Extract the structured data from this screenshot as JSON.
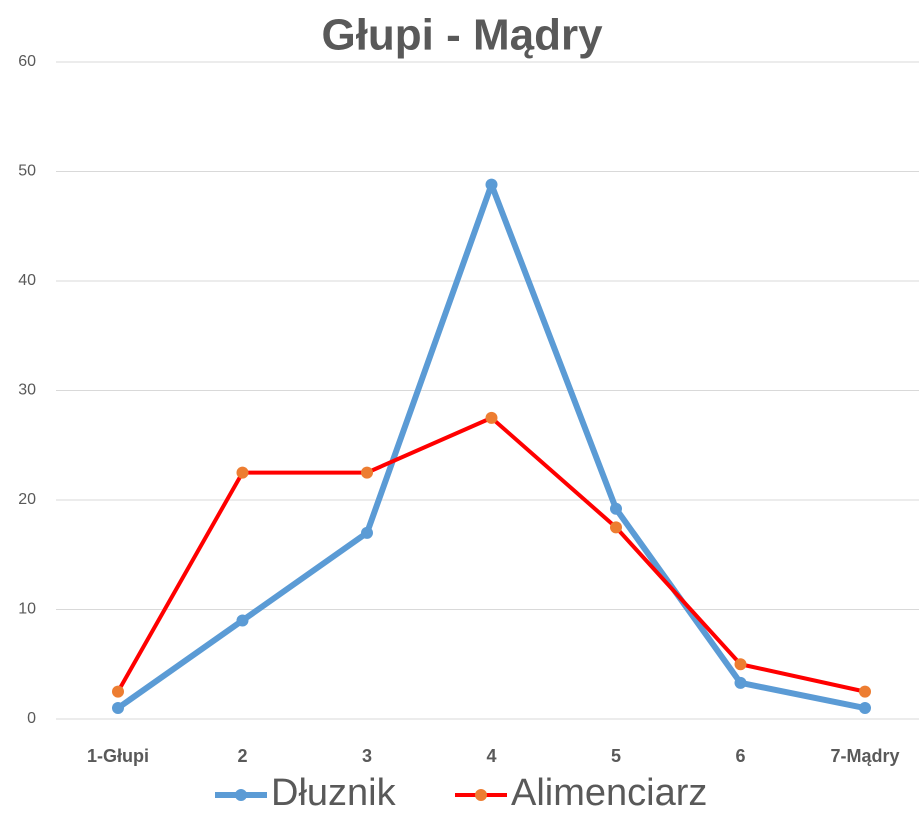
{
  "chart_data": {
    "type": "line",
    "title": "Głupi - Mądry",
    "categories": [
      "1-Głupi",
      "2",
      "3",
      "4",
      "5",
      "6",
      "7-Mądry"
    ],
    "series": [
      {
        "name": "Dłuznik",
        "color": "#5b9bd5",
        "marker_color": "#5b9bd5",
        "values": [
          1,
          9,
          17,
          48.8,
          19.2,
          3.3,
          1
        ]
      },
      {
        "name": "Alimenciarz",
        "color": "#ff0000",
        "marker_color": "#ed7d31",
        "values": [
          2.5,
          22.5,
          22.5,
          27.5,
          17.5,
          5,
          2.5
        ]
      }
    ],
    "ylim": [
      0,
      60
    ],
    "yticks": [
      0,
      10,
      20,
      30,
      40,
      50,
      60
    ],
    "grid": true,
    "legend": "bottom"
  }
}
